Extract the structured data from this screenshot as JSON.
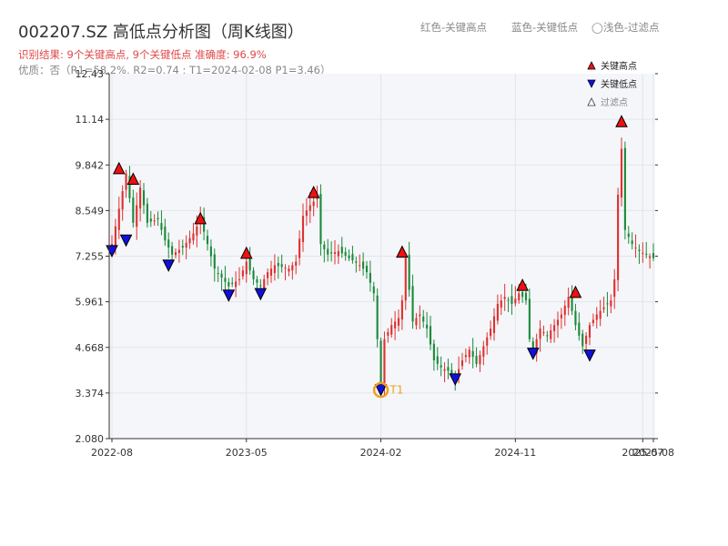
{
  "header": {
    "title": "002207.SZ 高低点分析图（周K线图）",
    "result": "识别结果: 9个关键高点, 9个关键低点  准确度: 96.9%",
    "quality": "优质：否（R1=58.2%, R2=0.74 ; T1=2024-02-08 P1=3.46）",
    "legend_top": [
      "红色-关键高点",
      "蓝色-关键低点",
      "◯浅色-过滤点"
    ]
  },
  "colors": {
    "up": "#e03030",
    "down": "#1a8a3a",
    "high": "#ee1111",
    "low": "#1010dd",
    "t1": "#f0a020",
    "plot_bg": "#f4f6f9",
    "grid": "#e2e5ea"
  },
  "chart_data": {
    "type": "candlestick",
    "title": "",
    "xlabel": "",
    "ylabel": "",
    "ylim": [
      2.08,
      12.43
    ],
    "yticks": [
      "12.43",
      "11.14",
      "9.842",
      "8.549",
      "7.255",
      "5.961",
      "4.668",
      "3.374",
      "2.080"
    ],
    "xticks": [
      {
        "label": "2022-08",
        "week": 0
      },
      {
        "label": "2023-05",
        "week": 38
      },
      {
        "label": "2024-02",
        "week": 76
      },
      {
        "label": "2024-11",
        "week": 114
      },
      {
        "label": "2025-07",
        "week": 150
      },
      {
        "label": "2025-08",
        "week": 153
      }
    ],
    "legend": [
      {
        "name": "关键高点",
        "marker": "high"
      },
      {
        "name": "关键低点",
        "marker": "low"
      },
      {
        "name": "过滤点",
        "marker": "filtered"
      }
    ],
    "price_path": [
      [
        0,
        7.6
      ],
      [
        2,
        8.6
      ],
      [
        4,
        9.6
      ],
      [
        6,
        8.2
      ],
      [
        8,
        9.2
      ],
      [
        10,
        8.2
      ],
      [
        13,
        8.3
      ],
      [
        15,
        7.7
      ],
      [
        16,
        7.5
      ],
      [
        17,
        7.3
      ],
      [
        20,
        7.5
      ],
      [
        23,
        7.9
      ],
      [
        25,
        8.3
      ],
      [
        27,
        7.6
      ],
      [
        29,
        6.9
      ],
      [
        33,
        6.4
      ],
      [
        36,
        6.6
      ],
      [
        38,
        7.1
      ],
      [
        40,
        6.6
      ],
      [
        42,
        6.4
      ],
      [
        44,
        6.8
      ],
      [
        46,
        7.0
      ],
      [
        50,
        6.9
      ],
      [
        52,
        7.1
      ],
      [
        54,
        8.4
      ],
      [
        56,
        8.7
      ],
      [
        58,
        8.9
      ],
      [
        59,
        7.6
      ],
      [
        61,
        7.3
      ],
      [
        64,
        7.4
      ],
      [
        67,
        7.2
      ],
      [
        70,
        7.0
      ],
      [
        72,
        6.8
      ],
      [
        74,
        6.2
      ],
      [
        75,
        4.9
      ],
      [
        76,
        3.5
      ],
      [
        77,
        4.9
      ],
      [
        79,
        5.3
      ],
      [
        81,
        5.5
      ],
      [
        82,
        6.0
      ],
      [
        83,
        7.2
      ],
      [
        84,
        6.3
      ],
      [
        85,
        5.4
      ],
      [
        87,
        5.6
      ],
      [
        89,
        5.2
      ],
      [
        91,
        4.3
      ],
      [
        93,
        4.1
      ],
      [
        95,
        4.0
      ],
      [
        97,
        3.8
      ],
      [
        99,
        4.3
      ],
      [
        101,
        4.6
      ],
      [
        103,
        4.2
      ],
      [
        105,
        4.7
      ],
      [
        107,
        5.2
      ],
      [
        109,
        5.9
      ],
      [
        111,
        6.1
      ],
      [
        113,
        5.9
      ],
      [
        115,
        6.2
      ],
      [
        117,
        6.0
      ],
      [
        118,
        4.9
      ],
      [
        119,
        4.6
      ],
      [
        121,
        5.2
      ],
      [
        123,
        5.0
      ],
      [
        125,
        5.3
      ],
      [
        127,
        5.6
      ],
      [
        129,
        6.1
      ],
      [
        131,
        5.3
      ],
      [
        133,
        4.7
      ],
      [
        135,
        5.3
      ],
      [
        137,
        5.6
      ],
      [
        139,
        5.8
      ],
      [
        141,
        6.0
      ],
      [
        142,
        6.6
      ],
      [
        143,
        9.0
      ],
      [
        144,
        10.3
      ],
      [
        145,
        8.0
      ],
      [
        147,
        7.6
      ],
      [
        149,
        7.4
      ],
      [
        151,
        7.3
      ],
      [
        153,
        7.2
      ]
    ],
    "key_highs": [
      {
        "week": 2,
        "price": 9.75
      },
      {
        "week": 6,
        "price": 9.45
      },
      {
        "week": 25,
        "price": 8.33
      },
      {
        "week": 38,
        "price": 7.35
      },
      {
        "week": 57,
        "price": 9.07
      },
      {
        "week": 82,
        "price": 7.38
      },
      {
        "week": 116,
        "price": 6.44
      },
      {
        "week": 131,
        "price": 6.24
      },
      {
        "week": 144,
        "price": 11.08
      }
    ],
    "key_lows": [
      {
        "week": 0,
        "price": 7.4
      },
      {
        "week": 4,
        "price": 7.7
      },
      {
        "week": 16,
        "price": 6.99
      },
      {
        "week": 33,
        "price": 6.14
      },
      {
        "week": 42,
        "price": 6.18
      },
      {
        "week": 76,
        "price": 3.46
      },
      {
        "week": 97,
        "price": 3.76
      },
      {
        "week": 119,
        "price": 4.49
      },
      {
        "week": 135,
        "price": 4.44
      }
    ],
    "annotations": [
      {
        "label": "T1",
        "week": 76,
        "price": 3.46
      }
    ]
  }
}
